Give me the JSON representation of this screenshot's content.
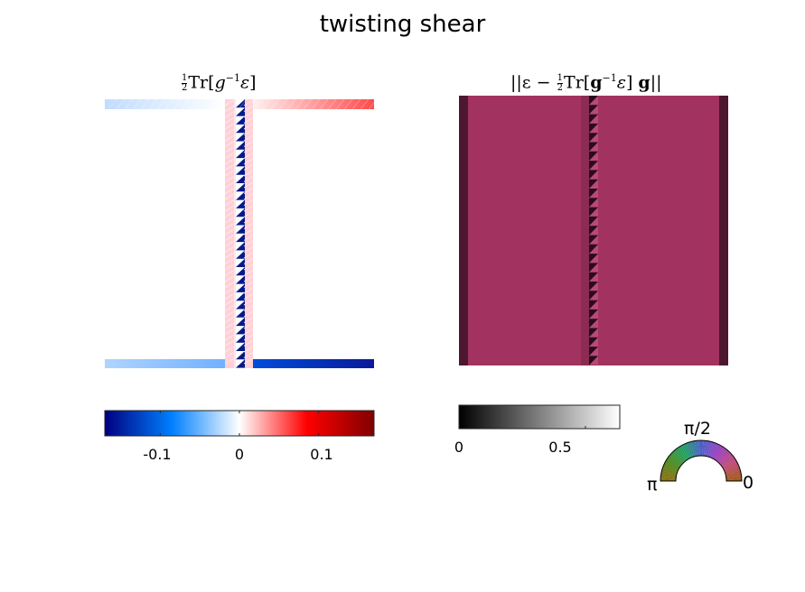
{
  "figure": {
    "title": "twisting shear"
  },
  "chart_data": [
    {
      "type": "heatmap",
      "title_parts": [
        "1",
        "2",
        "Tr",
        "g",
        "−1",
        "ε"
      ],
      "colormap": [
        "#000080",
        "#0080ff",
        "#ffffff",
        "#ff0000",
        "#800000"
      ],
      "colorbar": {
        "ticks": [
          -0.1,
          0,
          0.1
        ],
        "tick_labels": [
          "-0.1",
          "0",
          "0.1"
        ],
        "range": [
          -0.17,
          0.17
        ]
      }
    },
    {
      "type": "heatmap",
      "title_parts": [
        "||ε −",
        "1",
        "2",
        "Tr",
        "g",
        "−1",
        "ε",
        "g",
        "||"
      ],
      "main_color": "#a23360",
      "dark_color": "#4e1730",
      "colorbar": {
        "ticks": [
          0,
          0.5
        ],
        "tick_labels": [
          "0",
          "0.5"
        ],
        "range": [
          0,
          0.8
        ],
        "colors": [
          "#000000",
          "#ffffff"
        ]
      }
    }
  ],
  "orientation_legend": {
    "labels": [
      "π/2",
      "π",
      "0"
    ],
    "colors": [
      "#a05a14",
      "#c04a7a",
      "#9a40c0",
      "#4a60c8",
      "#20a060",
      "#508a20",
      "#8a7010"
    ]
  }
}
